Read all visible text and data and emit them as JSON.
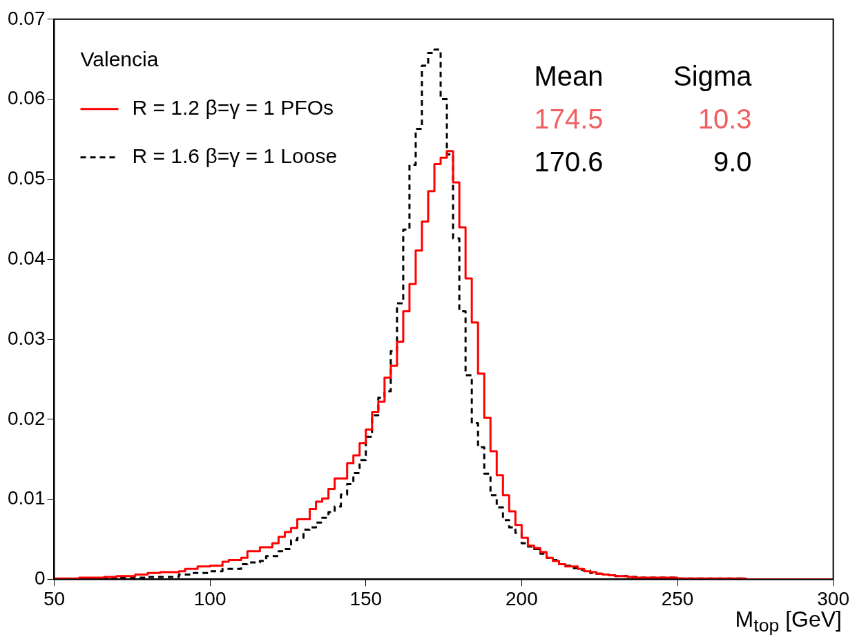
{
  "chart_data": {
    "type": "histogram",
    "xlabel": "M$_{top}$ [GeV]",
    "legend_title": "Valencia",
    "legend": "top left",
    "grid": false,
    "bins": [
      50,
      52,
      54,
      56,
      58,
      60,
      62,
      64,
      66,
      68,
      70,
      72,
      74,
      76,
      78,
      80,
      82,
      84,
      86,
      88,
      90,
      92,
      94,
      96,
      98,
      100,
      102,
      104,
      106,
      108,
      110,
      112,
      114,
      116,
      118,
      120,
      122,
      124,
      126,
      128,
      130,
      132,
      134,
      136,
      138,
      140,
      142,
      144,
      146,
      148,
      150,
      152,
      154,
      156,
      158,
      160,
      162,
      164,
      166,
      168,
      170,
      172,
      174,
      176,
      178,
      180,
      182,
      184,
      186,
      188,
      190,
      192,
      194,
      196,
      198,
      200,
      202,
      204,
      206,
      208,
      210,
      212,
      214,
      216,
      218,
      220,
      222,
      224,
      226,
      228,
      230,
      232,
      234,
      236,
      238,
      240,
      242,
      244,
      246,
      248,
      250,
      252,
      254,
      256,
      258,
      260,
      262,
      264,
      266,
      268,
      270,
      272,
      274,
      276,
      278,
      280,
      282,
      284,
      286,
      288,
      290,
      292,
      294,
      296,
      298,
      300
    ],
    "series": [
      {
        "name": "R = 1.2 β=γ = 1 PFOs",
        "color": "#ff0000",
        "line_style": "solid",
        "values": [
          0.0001,
          0.0001,
          0.0001,
          0.0001,
          0.0002,
          0.0002,
          0.0002,
          0.0002,
          0.0003,
          0.0003,
          0.0004,
          0.0004,
          0.0004,
          0.0006,
          0.0006,
          0.0008,
          0.0008,
          0.0009,
          0.0009,
          0.0009,
          0.001,
          0.0013,
          0.0013,
          0.0016,
          0.0016,
          0.0017,
          0.0017,
          0.0022,
          0.0024,
          0.0024,
          0.0027,
          0.0035,
          0.0035,
          0.004,
          0.004,
          0.0045,
          0.0053,
          0.0059,
          0.0064,
          0.0075,
          0.0075,
          0.0088,
          0.0097,
          0.0101,
          0.0113,
          0.0126,
          0.0126,
          0.0145,
          0.0155,
          0.017,
          0.0187,
          0.0209,
          0.0222,
          0.0252,
          0.0267,
          0.0297,
          0.0335,
          0.0369,
          0.0411,
          0.0447,
          0.0485,
          0.0519,
          0.0527,
          0.0535,
          0.0496,
          0.044,
          0.0376,
          0.0321,
          0.0257,
          0.0202,
          0.016,
          0.013,
          0.0105,
          0.0085,
          0.0068,
          0.0052,
          0.0042,
          0.0039,
          0.0034,
          0.0027,
          0.0023,
          0.0019,
          0.0016,
          0.0016,
          0.0013,
          0.001,
          0.0009,
          0.0007,
          0.0006,
          0.0005,
          0.0004,
          0.0004,
          0.0003,
          0.0002,
          0.0002,
          0.0002,
          0.0002,
          0.0002,
          0.0002,
          0.0002,
          0.0001,
          0.0001,
          0.0001,
          0.0001,
          0.0001,
          0.0001,
          0.0001,
          0.0001,
          0.0001,
          0.0001,
          0.0001,
          0,
          0,
          0,
          0,
          0,
          0,
          0,
          0,
          0,
          0,
          0,
          0,
          0,
          0
        ]
      },
      {
        "name": "R = 1.6 β=γ = 1 Loose",
        "color": "#000000",
        "line_style": "dashed",
        "values": [
          0,
          0,
          0,
          0,
          0,
          0.0001,
          0.0001,
          0.0001,
          0.0001,
          0.0001,
          0.0002,
          0.0002,
          0.0002,
          0.0002,
          0.0002,
          0.0003,
          0.0003,
          0.0003,
          0.0003,
          0.0003,
          0.0006,
          0.0006,
          0.0008,
          0.0008,
          0.0008,
          0.001,
          0.001,
          0.0013,
          0.0013,
          0.0013,
          0.0019,
          0.0021,
          0.0021,
          0.0023,
          0.0029,
          0.0029,
          0.0035,
          0.0038,
          0.0049,
          0.0052,
          0.0062,
          0.0065,
          0.0071,
          0.0077,
          0.0084,
          0.0091,
          0.0106,
          0.0119,
          0.0133,
          0.0149,
          0.0178,
          0.0205,
          0.0227,
          0.0235,
          0.0285,
          0.0345,
          0.0437,
          0.0518,
          0.0563,
          0.0642,
          0.0658,
          0.0662,
          0.06,
          0.0531,
          0.0426,
          0.0335,
          0.0255,
          0.0195,
          0.0165,
          0.0132,
          0.0105,
          0.009,
          0.0074,
          0.0065,
          0.0058,
          0.0045,
          0.0041,
          0.0038,
          0.0032,
          0.0027,
          0.0024,
          0.0019,
          0.0017,
          0.0014,
          0.0012,
          0.0011,
          0.0008,
          0.0007,
          0.0006,
          0.0005,
          0.0004,
          0.0004,
          0.0003,
          0.0003,
          0.0002,
          0.0002,
          0.0002,
          0.0002,
          0.0002,
          0.0002,
          0.0001,
          0.0001,
          0.0001,
          0.0001,
          0.0001,
          0.0001,
          0.0001,
          0.0001,
          0.0001,
          0.0001,
          0.0001,
          0,
          0,
          0,
          0,
          0,
          0,
          0,
          0,
          0,
          0,
          0,
          0,
          0,
          0
        ]
      }
    ],
    "annotations": [
      "Mean",
      "Sigma",
      "174.5",
      "10.3",
      "170.6",
      "9.0"
    ],
    "xlim": [
      50,
      300
    ],
    "xticks": [
      50,
      100,
      150,
      200,
      250,
      300
    ],
    "ylim": [
      0,
      0.07
    ],
    "yticks": [
      0,
      0.01,
      0.02,
      0.03,
      0.04,
      0.05,
      0.06,
      0.07
    ]
  }
}
